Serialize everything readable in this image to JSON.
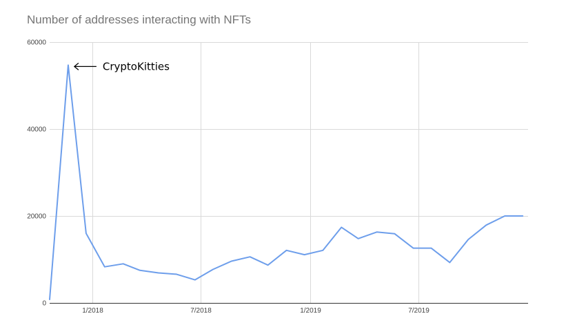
{
  "chart_data": {
    "type": "line",
    "title": "Number of addresses interacting with NFTs",
    "xlabel": "",
    "ylabel": "",
    "ylim": [
      0,
      60000
    ],
    "y_ticks": [
      0,
      20000,
      40000,
      60000
    ],
    "y_tick_labels": [
      "0",
      "20000",
      "40000",
      "60000"
    ],
    "x_ticks": [
      "2018-01-01",
      "2018-07-01",
      "2019-01-01",
      "2019-07-01"
    ],
    "x_tick_labels": [
      "1/2018",
      "7/2018",
      "1/2019",
      "7/2019"
    ],
    "xlim": [
      "2017-10-22",
      "2019-12-31"
    ],
    "grid": true,
    "series": [
      {
        "color": "#6d9eeb",
        "x": [
          "2017-10-22",
          "2017-11-22",
          "2017-12-22",
          "2018-01-22",
          "2018-02-22",
          "2018-03-22",
          "2018-04-22",
          "2018-05-22",
          "2018-06-22",
          "2018-07-22",
          "2018-08-22",
          "2018-09-22",
          "2018-10-22",
          "2018-11-22",
          "2018-12-22",
          "2019-01-22",
          "2019-02-22",
          "2019-03-22",
          "2019-04-22",
          "2019-05-22",
          "2019-06-22",
          "2019-07-22",
          "2019-08-22",
          "2019-09-22",
          "2019-10-22",
          "2019-11-22",
          "2019-12-22"
        ],
        "values": [
          800,
          54700,
          16000,
          8300,
          9000,
          7500,
          6900,
          6600,
          5300,
          7700,
          9600,
          10600,
          8700,
          12100,
          11100,
          12100,
          17400,
          14800,
          16300,
          15900,
          12600,
          12600,
          9300,
          14600,
          17900,
          20000,
          20000
        ]
      }
    ],
    "annotations": [
      {
        "text": "CryptoKitties",
        "arrow": "left",
        "target_x": "2017-11-22",
        "target_y": 54700
      }
    ]
  }
}
